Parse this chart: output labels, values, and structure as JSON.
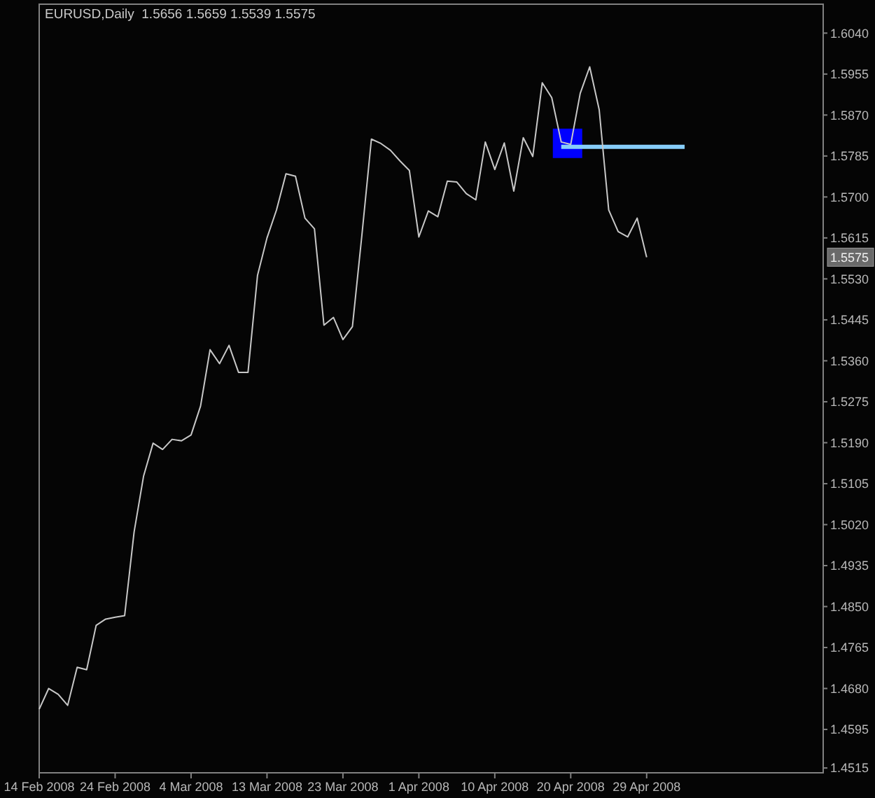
{
  "chart_data": {
    "type": "line",
    "title": "EURUSD,Daily  1.5656 1.5659 1.5539 1.5575",
    "categories": [
      "14 Feb 2008",
      null,
      null,
      null,
      null,
      null,
      null,
      null,
      "24 Feb 2008",
      null,
      null,
      null,
      null,
      null,
      null,
      null,
      "4 Mar 2008",
      null,
      null,
      null,
      null,
      null,
      null,
      null,
      "13 Mar 2008",
      null,
      null,
      null,
      null,
      null,
      null,
      null,
      "23 Mar 2008",
      null,
      null,
      null,
      null,
      null,
      null,
      null,
      "1 Apr 2008",
      null,
      null,
      null,
      null,
      null,
      null,
      null,
      "10 Apr 2008",
      null,
      null,
      null,
      null,
      null,
      null,
      null,
      "20 Apr 2008",
      null,
      null,
      null,
      null,
      null,
      null,
      null,
      "29 Apr 2008",
      null,
      null,
      null,
      null,
      null,
      null,
      null,
      null,
      null,
      null,
      null,
      null,
      null,
      null,
      null,
      null,
      null,
      null
    ],
    "series": [
      {
        "color": "#c8c8c8",
        "values": [
          1.4637,
          1.468,
          1.4668,
          1.4645,
          1.4724,
          1.4719,
          1.4811,
          1.4824,
          1.4828,
          1.4831,
          1.5005,
          1.5121,
          1.5189,
          1.5176,
          1.5197,
          1.5194,
          1.5206,
          1.5266,
          1.5383,
          1.5354,
          1.5392,
          1.5336,
          1.5336,
          1.5537,
          1.5615,
          1.5673,
          1.5748,
          1.5743,
          1.5656,
          1.5634,
          1.5434,
          1.545,
          1.5404,
          1.5431,
          1.5621,
          1.582,
          1.5811,
          1.5797,
          1.5775,
          1.5755,
          1.5617,
          1.5671,
          1.5659,
          1.5733,
          1.5731,
          1.5707,
          1.5694,
          1.5814,
          1.5757,
          1.5812,
          1.5712,
          1.5823,
          1.5784,
          1.5937,
          1.5906,
          1.5814,
          1.5809,
          1.5915,
          1.597,
          1.5881,
          1.5673,
          1.5628,
          1.5617,
          1.5656,
          1.5575,
          null,
          null,
          null,
          null,
          null,
          null,
          null,
          null,
          null,
          null,
          null,
          null,
          null,
          null,
          null,
          null,
          null,
          null
        ]
      },
      {
        "color": "#87cefa",
        "values": [
          null,
          null,
          null,
          null,
          null,
          null,
          null,
          null,
          null,
          null,
          null,
          null,
          null,
          null,
          null,
          null,
          null,
          null,
          null,
          null,
          null,
          null,
          null,
          null,
          null,
          null,
          null,
          null,
          null,
          null,
          null,
          null,
          null,
          null,
          null,
          null,
          null,
          null,
          null,
          null,
          null,
          null,
          null,
          null,
          null,
          null,
          null,
          null,
          null,
          null,
          null,
          null,
          null,
          null,
          null,
          1.5804,
          1.5804,
          1.5804,
          1.5804,
          1.5804,
          1.5804,
          1.5804,
          1.5804,
          1.5804,
          1.5804,
          1.5804,
          1.5804,
          1.5804,
          1.5804,
          null,
          null,
          null,
          null,
          null,
          null,
          null,
          null,
          null,
          null,
          null,
          null,
          null,
          null
        ]
      }
    ],
    "ylim": [
      1.4505,
      1.61
    ],
    "yticks": [
      1.4515,
      1.4595,
      {
        "value": 1.468,
        "label": "1.4680"
      },
      1.4765,
      {
        "value": 1.485,
        "label": "1.4850"
      },
      1.4935,
      {
        "value": 1.502,
        "label": "1.5020"
      },
      1.5105,
      {
        "value": 1.519,
        "label": "1.5190"
      },
      1.5275,
      {
        "value": 1.536,
        "label": "1.5360"
      },
      1.5445,
      {
        "value": 1.553,
        "label": "1.5530"
      },
      1.5615,
      {
        "value": 1.57,
        "label": "1.5700"
      },
      1.5785,
      {
        "value": 1.587,
        "label": "1.5870"
      },
      1.5955,
      {
        "value": 1.604,
        "label": "1.6040"
      }
    ],
    "annotations": [
      {
        "text": "1.5575",
        "y": 1.5575
      }
    ]
  }
}
